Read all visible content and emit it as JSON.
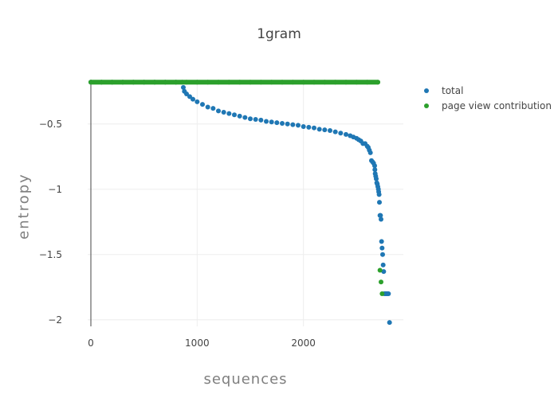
{
  "chart_data": {
    "type": "scatter",
    "title": "1gram",
    "xlabel": "sequences",
    "ylabel": "entropy",
    "xlim": [
      -30,
      2940
    ],
    "ylim": [
      -2.05,
      -0.16
    ],
    "x_ticks": [
      0,
      1000,
      2000
    ],
    "x_tick_labels": [
      "0",
      "1000",
      "2000"
    ],
    "y_ticks": [
      -0.5,
      -1,
      -1.5,
      -2
    ],
    "y_tick_labels": [
      "−0.5",
      "−1",
      "−1.5",
      "−2"
    ],
    "grid": true,
    "legend_position": "top-right",
    "series": [
      {
        "name": "total",
        "color": "#1f77b4",
        "x": [
          0,
          100,
          200,
          300,
          400,
          500,
          600,
          700,
          800,
          860,
          870,
          880,
          900,
          930,
          960,
          1000,
          1050,
          1100,
          1150,
          1200,
          1250,
          1300,
          1350,
          1400,
          1450,
          1500,
          1550,
          1600,
          1650,
          1700,
          1750,
          1800,
          1850,
          1900,
          1950,
          2000,
          2050,
          2100,
          2150,
          2200,
          2250,
          2300,
          2350,
          2400,
          2440,
          2470,
          2500,
          2520,
          2540,
          2560,
          2580,
          2600,
          2610,
          2620,
          2630,
          2640,
          2650,
          2660,
          2670,
          2672,
          2675,
          2680,
          2685,
          2690,
          2695,
          2700,
          2705,
          2708,
          2712,
          2715,
          2720,
          2725,
          2730,
          2735,
          2740,
          2745,
          2750,
          2755,
          2760,
          2770,
          2780,
          2790,
          2800,
          2810
        ],
        "y": [
          -0.18,
          -0.18,
          -0.18,
          -0.18,
          -0.18,
          -0.18,
          -0.18,
          -0.18,
          -0.18,
          -0.18,
          -0.22,
          -0.25,
          -0.27,
          -0.29,
          -0.31,
          -0.33,
          -0.35,
          -0.37,
          -0.38,
          -0.4,
          -0.41,
          -0.42,
          -0.43,
          -0.44,
          -0.45,
          -0.46,
          -0.465,
          -0.47,
          -0.48,
          -0.485,
          -0.49,
          -0.495,
          -0.5,
          -0.505,
          -0.51,
          -0.52,
          -0.525,
          -0.53,
          -0.54,
          -0.545,
          -0.55,
          -0.56,
          -0.57,
          -0.58,
          -0.59,
          -0.6,
          -0.61,
          -0.62,
          -0.63,
          -0.65,
          -0.65,
          -0.67,
          -0.68,
          -0.7,
          -0.72,
          -0.78,
          -0.79,
          -0.8,
          -0.82,
          -0.85,
          -0.88,
          -0.9,
          -0.92,
          -0.95,
          -0.96,
          -0.98,
          -1.0,
          -1.02,
          -1.04,
          -1.1,
          -1.2,
          -1.2,
          -1.23,
          -1.4,
          -1.45,
          -1.5,
          -1.58,
          -1.63,
          -1.8,
          -1.8,
          -1.8,
          -1.8,
          -1.8,
          -2.02
        ]
      },
      {
        "name": "page view contribution",
        "color": "#2ca02c",
        "x": [
          0,
          100,
          200,
          300,
          400,
          500,
          600,
          700,
          800,
          900,
          1000,
          1100,
          1200,
          1300,
          1400,
          1500,
          1600,
          1700,
          1800,
          1900,
          2000,
          2100,
          2200,
          2300,
          2400,
          2500,
          2600,
          2700,
          2720,
          2730,
          2740
        ],
        "y": [
          -0.18,
          -0.18,
          -0.18,
          -0.18,
          -0.18,
          -0.18,
          -0.18,
          -0.18,
          -0.18,
          -0.18,
          -0.18,
          -0.18,
          -0.18,
          -0.18,
          -0.18,
          -0.18,
          -0.18,
          -0.18,
          -0.18,
          -0.18,
          -0.18,
          -0.18,
          -0.18,
          -0.18,
          -0.18,
          -0.18,
          -0.18,
          -0.18,
          -1.62,
          -1.71,
          -1.8
        ]
      }
    ]
  }
}
